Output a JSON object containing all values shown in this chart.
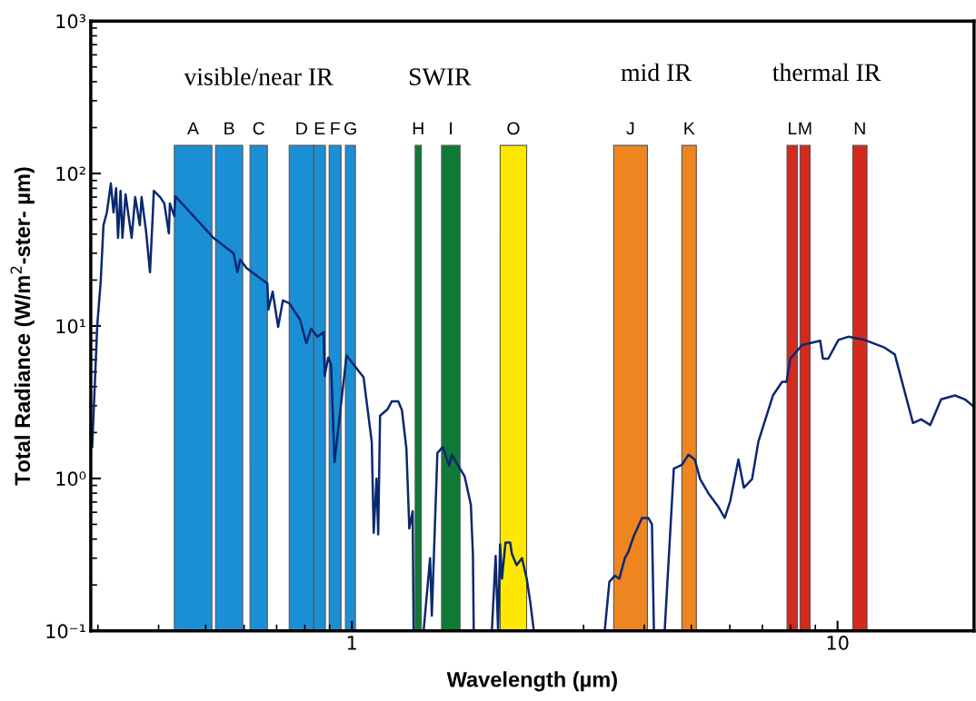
{
  "chart_data": {
    "type": "line",
    "xlabel": "Wavelength (µm)",
    "ylabel": "Total Radiance (W/m$^{2}$-ster- µm)",
    "log": "xy",
    "grid": false,
    "xlim": [
      0.29,
      19.1
    ],
    "ylim": [
      0.1,
      1000
    ],
    "xticks": [
      1,
      10
    ],
    "yticks": [
      {
        "value": 0.1,
        "label": "10⁻¹"
      },
      {
        "value": 1,
        "label": "10⁰"
      },
      {
        "value": 10,
        "label": "10¹"
      },
      {
        "value": 100,
        "label": "10²"
      },
      {
        "value": 1000,
        "label": "10³"
      }
    ],
    "series": [
      {
        "color": "#0b2870",
        "x": [
          0.292,
          0.299,
          0.304,
          0.308,
          0.313,
          0.319,
          0.323,
          0.327,
          0.33,
          0.334,
          0.337,
          0.342,
          0.352,
          0.358,
          0.366,
          0.369,
          0.377,
          0.384,
          0.389,
          0.391,
          0.403,
          0.411,
          0.42,
          0.422,
          0.431,
          0.433,
          0.519,
          0.571,
          0.581,
          0.589,
          0.607,
          0.67,
          0.673,
          0.687,
          0.705,
          0.721,
          0.743,
          0.782,
          0.806,
          0.824,
          0.849,
          0.875,
          0.879,
          0.894,
          0.906,
          0.921,
          0.975,
          1.057,
          1.099,
          1.109,
          1.124,
          1.133,
          1.143,
          1.183,
          1.208,
          1.246,
          1.268,
          1.295,
          1.313,
          1.334,
          1.34,
          1.37,
          1.405,
          1.449,
          1.461,
          1.5,
          1.539,
          1.586,
          1.607,
          1.707,
          1.758,
          1.775,
          1.782,
          1.86,
          1.942,
          1.977,
          2.0,
          2.019,
          2.037,
          2.072,
          2.118,
          2.136,
          2.183,
          2.24,
          2.291,
          2.328,
          2.37,
          2.8,
          3.316,
          3.39,
          3.478,
          3.553,
          3.648,
          3.71,
          3.806,
          3.957,
          4.077,
          4.148,
          4.187,
          4.3,
          4.406,
          4.601,
          4.784,
          4.931,
          5.082,
          5.213,
          5.42,
          5.685,
          5.857,
          6.012,
          6.25,
          6.413,
          6.668,
          6.872,
          7.361,
          7.689,
          7.853,
          7.993,
          8.453,
          9.21,
          9.33,
          9.57,
          10.04,
          10.52,
          11.37,
          12.51,
          13.12,
          14.3,
          14.86,
          15.52,
          16.34,
          17.45,
          18.29,
          19.1
        ],
        "values": [
          1.61,
          10.0,
          19.6,
          45.8,
          55.5,
          86,
          55.5,
          80,
          37.8,
          77,
          37.8,
          73,
          37.8,
          70,
          45.8,
          70,
          41.6,
          22.5,
          52.5,
          77,
          70,
          63.6,
          40.5,
          63.6,
          52.5,
          71,
          37.8,
          29.9,
          22.5,
          27.2,
          24.0,
          19.0,
          12.8,
          16.8,
          9.86,
          14.7,
          14.1,
          11.0,
          7.7,
          9.6,
          8.5,
          9.1,
          4.7,
          6.2,
          5.6,
          1.28,
          6.4,
          4.6,
          1.73,
          0.44,
          1.0,
          0.43,
          2.58,
          2.83,
          3.2,
          3.2,
          2.8,
          1.57,
          0.47,
          0.61,
          0.1,
          null,
          0.1,
          0.3,
          0.126,
          1.47,
          1.61,
          1.21,
          1.43,
          1.03,
          0.67,
          0.32,
          0.1,
          null,
          0.1,
          0.31,
          0.1,
          0.37,
          0.22,
          0.38,
          0.38,
          0.32,
          0.27,
          0.3,
          0.22,
          0.157,
          0.1,
          null,
          0.1,
          0.21,
          0.23,
          0.22,
          0.3,
          0.33,
          0.42,
          0.55,
          0.55,
          0.5,
          0.1,
          null,
          0.1,
          1.16,
          1.23,
          1.43,
          1.33,
          0.99,
          0.8,
          0.65,
          0.55,
          0.71,
          1.33,
          0.87,
          0.99,
          1.75,
          3.5,
          4.3,
          4.3,
          6.1,
          7.5,
          8.0,
          6.1,
          6.1,
          8.1,
          8.5,
          8.1,
          7.2,
          6.5,
          2.31,
          2.44,
          2.24,
          3.3,
          3.5,
          3.3,
          2.95
        ]
      }
    ],
    "bands": [
      {
        "axis": "x",
        "from": 0.431,
        "to": 0.515,
        "label": "A",
        "color": "#1a8fd6"
      },
      {
        "axis": "x",
        "from": 0.524,
        "to": 0.596,
        "label": "B",
        "color": "#1a8fd6"
      },
      {
        "axis": "x",
        "from": 0.617,
        "to": 0.67,
        "label": "C",
        "color": "#1a8fd6"
      },
      {
        "axis": "x",
        "from": 0.743,
        "to": 0.835,
        "label": "D",
        "color": "#1a8fd6"
      },
      {
        "axis": "x",
        "from": 0.835,
        "to": 0.882,
        "label": "E",
        "color": "#1a8fd6"
      },
      {
        "axis": "x",
        "from": 0.898,
        "to": 0.95,
        "label": "F",
        "color": "#1a8fd6"
      },
      {
        "axis": "x",
        "from": 0.97,
        "to": 1.017,
        "label": "G",
        "color": "#1a8fd6"
      },
      {
        "axis": "x",
        "from": 1.35,
        "to": 1.39,
        "label": "H",
        "color": "#0d7a35"
      },
      {
        "axis": "x",
        "from": 1.53,
        "to": 1.67,
        "label": "I",
        "color": "#0d7a35"
      },
      {
        "axis": "x",
        "from": 2.02,
        "to": 2.29,
        "label": "O",
        "color": "#ffe800"
      },
      {
        "axis": "x",
        "from": 3.46,
        "to": 4.06,
        "label": "J",
        "color": "#ee8520"
      },
      {
        "axis": "x",
        "from": 4.78,
        "to": 5.12,
        "label": "K",
        "color": "#ee8520"
      },
      {
        "axis": "x",
        "from": 7.87,
        "to": 8.27,
        "label": "L",
        "color": "#d42a1e"
      },
      {
        "axis": "x",
        "from": 8.37,
        "to": 8.78,
        "label": "M",
        "color": "#d42a1e"
      },
      {
        "axis": "x",
        "from": 10.75,
        "to": 11.5,
        "label": "N",
        "color": "#d42a1e"
      }
    ],
    "annotations": [
      "visible/near IR",
      "SWIR",
      "mid IR",
      "thermal IR"
    ]
  }
}
